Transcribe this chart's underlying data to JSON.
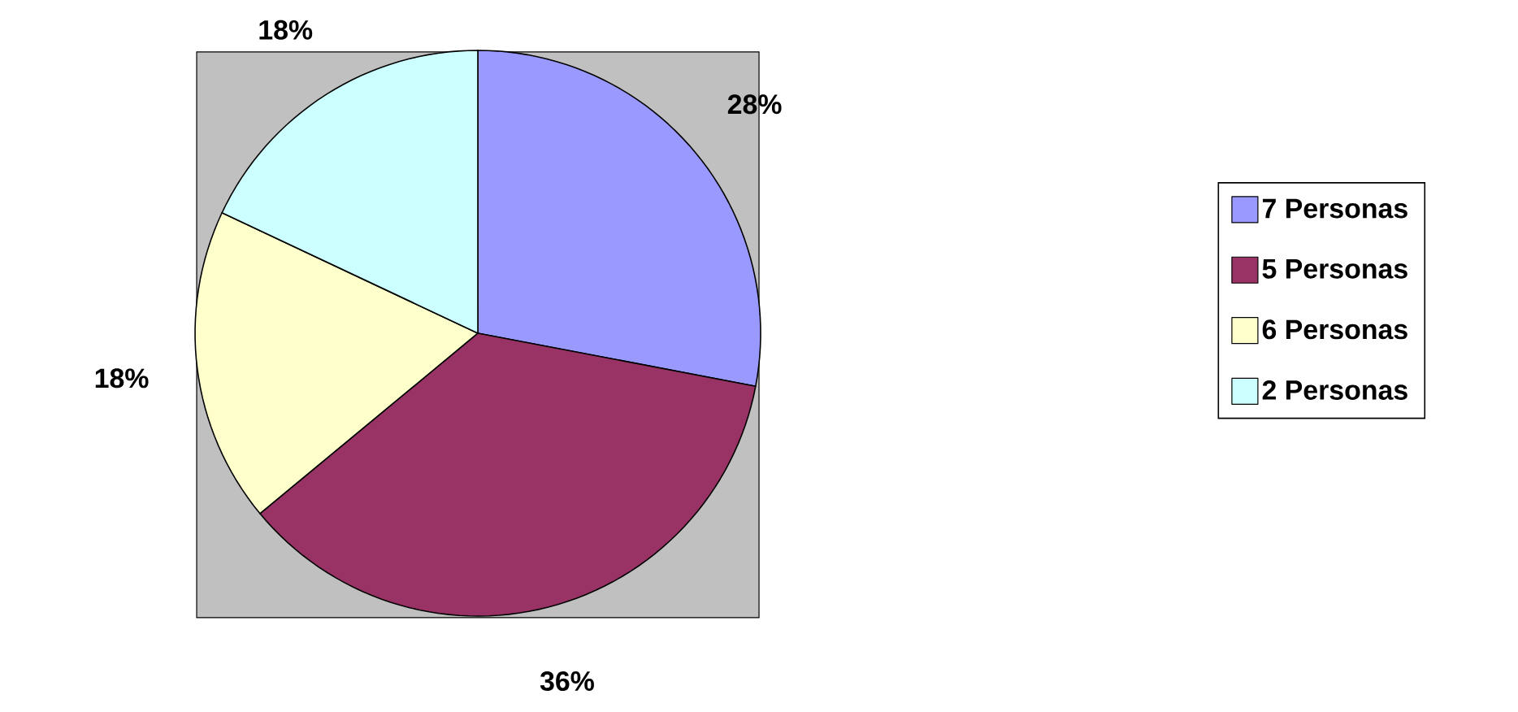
{
  "chart_data": {
    "type": "pie",
    "categories": [
      "7 Personas",
      "5 Personas",
      "6 Personas",
      "2 Personas"
    ],
    "values": [
      28,
      36,
      18,
      18
    ],
    "colors": [
      "#9999ff",
      "#993366",
      "#ffffcc",
      "#ccffff"
    ],
    "value_labels": [
      "28%",
      "36%",
      "18%",
      "18%"
    ],
    "legend": "right"
  }
}
